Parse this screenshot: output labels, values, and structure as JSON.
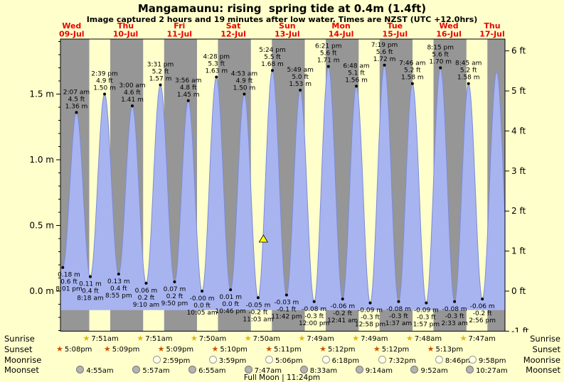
{
  "title": "Mangamaunu: rising  spring tide at 0.4m (1.4ft)",
  "subtitle": "Image captured 2 hours and 19 minutes after low water. Times are NZST (UTC +12.0hrs)",
  "colors": {
    "background": "#ffffcc",
    "night_band": "#969696",
    "day_band": "#ffffcc",
    "tide_fill": "#a8b4f0",
    "tide_edge": "#7b8cd8",
    "day_label_red": "#e80000",
    "marker_yellow": "#ffff00",
    "sunrise_star": "#e6b400",
    "sunset_star": "#cc5200",
    "moonrise_fill": "#ffffe8",
    "moonset_fill": "#b3b3b3"
  },
  "axes": {
    "left": [
      {
        "m": 1.5,
        "label": "1.5 m"
      },
      {
        "m": 1.0,
        "label": "1.0 m"
      },
      {
        "m": 0.5,
        "label": "0.5 m"
      },
      {
        "m": 0.0,
        "label": "0.0 m"
      }
    ],
    "right": [
      {
        "ft": 6,
        "label": "6 ft"
      },
      {
        "ft": 5,
        "label": "5 ft"
      },
      {
        "ft": 4,
        "label": "4 ft"
      },
      {
        "ft": 3,
        "label": "3 ft"
      },
      {
        "ft": 2,
        "label": "2 ft"
      },
      {
        "ft": 1,
        "label": "1 ft"
      },
      {
        "ft": 0,
        "label": "0 ft"
      },
      {
        "ft": -1,
        "label": "-1 ft"
      }
    ]
  },
  "days": [
    {
      "name": "Wed",
      "date": "09-Jul"
    },
    {
      "name": "Thu",
      "date": "10-Jul"
    },
    {
      "name": "Fri",
      "date": "11-Jul"
    },
    {
      "name": "Sat",
      "date": "12-Jul"
    },
    {
      "name": "Sun",
      "date": "13-Jul"
    },
    {
      "name": "Mon",
      "date": "14-Jul"
    },
    {
      "name": "Tue",
      "date": "15-Jul"
    },
    {
      "name": "Wed",
      "date": "16-Jul"
    },
    {
      "name": "Thu",
      "date": "17-Jul"
    }
  ],
  "chart_data": {
    "type": "area",
    "title": "Mangamaunu: rising  spring tide at 0.4m (1.4ft)",
    "t_reference": "hours from midnight at start of Wed 09-Jul, NZST",
    "x_window_hours": [
      -5,
      193
    ],
    "ylim_m": [
      -0.305,
      1.92
    ],
    "sunrise_hour": 7.83,
    "sunset_hour": 17.17,
    "fill_bottom_m": -0.145,
    "marker": {
      "t": 85.4,
      "m": 0.4
    },
    "edge_extremes": [
      {
        "t": -10.2,
        "m": 1.33
      },
      {
        "t": 189.3,
        "m": 1.67
      },
      {
        "t": 195.5,
        "m": -0.04
      }
    ],
    "extremes": [
      {
        "type": "low",
        "t": -3.98,
        "m": 0.18,
        "m_label": "0.18 m",
        "ft": "0.6 ft",
        "time": "8:01 pm"
      },
      {
        "type": "high",
        "t": 2.12,
        "m": 1.36,
        "m_label": "1.36 m",
        "ft": "4.5 ft",
        "time": "2:07 am"
      },
      {
        "type": "low",
        "t": 8.3,
        "m": 0.11,
        "m_label": "0.11 m",
        "ft": "0.4 ft",
        "time": "8:18 am"
      },
      {
        "type": "high",
        "t": 14.65,
        "m": 1.5,
        "m_label": "1.50 m",
        "ft": "4.9 ft",
        "time": "2:39 pm"
      },
      {
        "type": "low",
        "t": 20.92,
        "m": 0.13,
        "m_label": "0.13 m",
        "ft": "0.4 ft",
        "time": "8:55 pm"
      },
      {
        "type": "high",
        "t": 27.0,
        "m": 1.41,
        "m_label": "1.41 m",
        "ft": "4.6 ft",
        "time": "3:00 am"
      },
      {
        "type": "low",
        "t": 33.17,
        "m": 0.06,
        "m_label": "0.06 m",
        "ft": "0.2 ft",
        "time": "9:10 am"
      },
      {
        "type": "high",
        "t": 39.52,
        "m": 1.57,
        "m_label": "1.57 m",
        "ft": "5.2 ft",
        "time": "3:31 pm"
      },
      {
        "type": "low",
        "t": 45.83,
        "m": 0.07,
        "m_label": "0.07 m",
        "ft": "0.2 ft",
        "time": "9:50 pm"
      },
      {
        "type": "high",
        "t": 51.93,
        "m": 1.45,
        "m_label": "1.45 m",
        "ft": "4.8 ft",
        "time": "3:56 am"
      },
      {
        "type": "low",
        "t": 58.08,
        "m": 0.0,
        "m_label": "-0.00 m",
        "ft": "0.0 ft",
        "time": "10:05 am"
      },
      {
        "type": "high",
        "t": 64.47,
        "m": 1.63,
        "m_label": "1.63 m",
        "ft": "5.3 ft",
        "time": "4:28 pm"
      },
      {
        "type": "low",
        "t": 70.77,
        "m": 0.01,
        "m_label": "0.01 m",
        "ft": "0.0 ft",
        "time": "10:46 pm"
      },
      {
        "type": "high",
        "t": 76.88,
        "m": 1.5,
        "m_label": "1.50 m",
        "ft": "4.9 ft",
        "time": "4:53 am"
      },
      {
        "type": "low",
        "t": 83.05,
        "m": -0.05,
        "m_label": "-0.05 m",
        "ft": "-0.2 ft",
        "time": "11:03 am"
      },
      {
        "type": "high",
        "t": 89.4,
        "m": 1.68,
        "m_label": "1.68 m",
        "ft": "5.5 ft",
        "time": "5:24 pm"
      },
      {
        "type": "low",
        "t": 95.7,
        "m": -0.03,
        "m_label": "-0.03 m",
        "ft": "-0.1 ft",
        "time": "11:42 pm"
      },
      {
        "type": "high",
        "t": 101.82,
        "m": 1.53,
        "m_label": "1.53 m",
        "ft": "5.0 ft",
        "time": "5:49 am"
      },
      {
        "type": "low",
        "t": 108.0,
        "m": -0.08,
        "m_label": "-0.08 m",
        "ft": "-0.3 ft",
        "time": "12:00 pm"
      },
      {
        "type": "high",
        "t": 114.35,
        "m": 1.71,
        "m_label": "1.71 m",
        "ft": "5.6 ft",
        "time": "6:21 pm"
      },
      {
        "type": "low",
        "t": 120.68,
        "m": -0.06,
        "m_label": "-0.06 m",
        "ft": "-0.2 ft",
        "time": "12:41 am"
      },
      {
        "type": "high",
        "t": 126.8,
        "m": 1.56,
        "m_label": "1.56 m",
        "ft": "5.1 ft",
        "time": "6:48 am"
      },
      {
        "type": "low",
        "t": 132.97,
        "m": -0.09,
        "m_label": "-0.09 m",
        "ft": "-0.3 ft",
        "time": "12:58 pm"
      },
      {
        "type": "high",
        "t": 139.32,
        "m": 1.72,
        "m_label": "1.72 m",
        "ft": "5.6 ft",
        "time": "7:19 pm"
      },
      {
        "type": "low",
        "t": 145.62,
        "m": -0.08,
        "m_label": "-0.08 m",
        "ft": "-0.3 ft",
        "time": "1:37 am"
      },
      {
        "type": "high",
        "t": 151.77,
        "m": 1.58,
        "m_label": "1.58 m",
        "ft": "5.2 ft",
        "time": "7:46 am"
      },
      {
        "type": "low",
        "t": 157.95,
        "m": -0.09,
        "m_label": "-0.09 m",
        "ft": "-0.3 ft",
        "time": "1:57 pm"
      },
      {
        "type": "high",
        "t": 164.25,
        "m": 1.7,
        "m_label": "1.70 m",
        "ft": "5.6 ft",
        "time": "8:15 pm"
      },
      {
        "type": "low",
        "t": 170.55,
        "m": -0.08,
        "m_label": "-0.08 m",
        "ft": "-0.3 ft",
        "time": "2:33 am"
      },
      {
        "type": "high",
        "t": 176.75,
        "m": 1.58,
        "m_label": "1.58 m",
        "ft": "5.2 ft",
        "time": "8:45 am"
      },
      {
        "type": "low",
        "t": 182.93,
        "m": -0.06,
        "m_label": "-0.06 m",
        "ft": "-0.2 ft",
        "time": "2:56 pm"
      }
    ]
  },
  "astro": {
    "row_labels": [
      "Sunrise",
      "Sunset",
      "Moonrise",
      "Moonset"
    ],
    "rows": [
      {
        "name": "sunrise",
        "icon": "sunrise-star",
        "times": [
          {
            "t": 7.85,
            "time": "7:51am"
          },
          {
            "t": 31.85,
            "time": "7:51am"
          },
          {
            "t": 55.83,
            "time": "7:50am"
          },
          {
            "t": 79.83,
            "time": "7:50am"
          },
          {
            "t": 103.82,
            "time": "7:49am"
          },
          {
            "t": 127.82,
            "time": "7:49am"
          },
          {
            "t": 151.8,
            "time": "7:48am"
          },
          {
            "t": 175.78,
            "time": "7:47am"
          }
        ]
      },
      {
        "name": "sunset",
        "icon": "sunset-star",
        "times": [
          {
            "t": -6.87,
            "time": "5:08pm"
          },
          {
            "t": 17.15,
            "time": "5:09pm"
          },
          {
            "t": 41.15,
            "time": "5:09pm"
          },
          {
            "t": 65.17,
            "time": "5:10pm"
          },
          {
            "t": 89.18,
            "time": "5:11pm"
          },
          {
            "t": 113.2,
            "time": "5:12pm"
          },
          {
            "t": 137.2,
            "time": "5:12pm"
          },
          {
            "t": 161.22,
            "time": "5:13pm"
          }
        ]
      },
      {
        "name": "moonrise",
        "icon": "moonrise-circle",
        "times": [
          {
            "t": 38.98,
            "time": "2:59pm"
          },
          {
            "t": 63.98,
            "time": "3:59pm"
          },
          {
            "t": 89.1,
            "time": "5:06pm"
          },
          {
            "t": 114.3,
            "time": "6:18pm"
          },
          {
            "t": 139.53,
            "time": "7:32pm"
          },
          {
            "t": 164.77,
            "time": "8:46pm"
          },
          {
            "t": 189.97,
            "time": "9:58pm"
          }
        ]
      },
      {
        "name": "moonset",
        "icon": "moonset-circle",
        "times": [
          {
            "t": 4.92,
            "time": "4:55am"
          },
          {
            "t": 29.95,
            "time": "5:57am"
          },
          {
            "t": 54.92,
            "time": "6:55am"
          },
          {
            "t": 79.78,
            "time": "7:47am"
          },
          {
            "t": 104.55,
            "time": "8:33am"
          },
          {
            "t": 129.23,
            "time": "9:14am"
          },
          {
            "t": 153.87,
            "time": "9:52am"
          },
          {
            "t": 178.45,
            "time": "10:27am"
          }
        ]
      }
    ],
    "full_moon": "Full Moon | 11:24pm"
  }
}
